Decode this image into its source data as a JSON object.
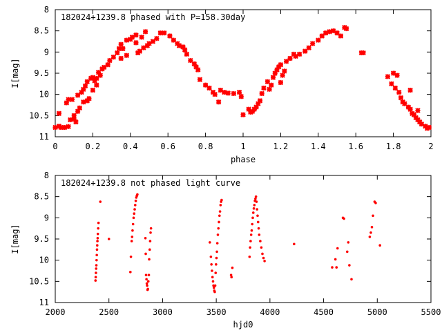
{
  "colors": {
    "marker": "#ff0000",
    "axes": "#000000",
    "background": "#ffffff"
  },
  "chart_data": [
    {
      "type": "scatter",
      "title": "182024+1239.8 phased with P=158.30day",
      "xlabel": "phase",
      "ylabel": "I[mag]",
      "xlim": [
        0,
        2
      ],
      "ylim": [
        8,
        11
      ],
      "y_inverted": true,
      "grid": false,
      "xticks": [
        "0",
        "0.2",
        "0.4",
        "0.6",
        "0.8",
        "1",
        "1.2",
        "1.4",
        "1.6",
        "1.8",
        "2"
      ],
      "yticks": [
        "8",
        "8.5",
        "9",
        "9.5",
        "10",
        "10.5",
        "11"
      ],
      "series": [
        {
          "marker": "star",
          "points": [
            [
              0.0,
              10.78
            ],
            [
              0.02,
              10.75
            ],
            [
              0.03,
              10.78
            ],
            [
              0.05,
              10.78
            ],
            [
              0.07,
              10.76
            ],
            [
              0.02,
              10.45
            ],
            [
              0.06,
              10.2
            ],
            [
              0.07,
              10.12
            ],
            [
              0.09,
              10.12
            ],
            [
              0.08,
              10.6
            ],
            [
              0.1,
              10.58
            ],
            [
              0.11,
              10.65
            ],
            [
              0.1,
              10.5
            ],
            [
              0.12,
              10.4
            ],
            [
              0.13,
              10.32
            ],
            [
              0.12,
              10.02
            ],
            [
              0.14,
              9.95
            ],
            [
              0.15,
              9.88
            ],
            [
              0.16,
              9.8
            ],
            [
              0.15,
              10.18
            ],
            [
              0.17,
              10.15
            ],
            [
              0.18,
              10.1
            ],
            [
              0.17,
              9.7
            ],
            [
              0.19,
              9.62
            ],
            [
              0.2,
              9.6
            ],
            [
              0.21,
              9.68
            ],
            [
              0.2,
              9.9
            ],
            [
              0.22,
              9.78
            ],
            [
              0.22,
              9.62
            ],
            [
              0.23,
              9.48
            ],
            [
              0.25,
              9.4
            ],
            [
              0.24,
              9.55
            ],
            [
              0.26,
              9.36
            ],
            [
              0.28,
              9.3
            ],
            [
              0.29,
              9.2
            ],
            [
              0.31,
              9.12
            ],
            [
              0.33,
              9.02
            ],
            [
              0.34,
              8.92
            ],
            [
              0.35,
              8.82
            ],
            [
              0.36,
              8.92
            ],
            [
              0.35,
              9.15
            ],
            [
              0.38,
              9.08
            ],
            [
              0.38,
              8.72
            ],
            [
              0.4,
              8.7
            ],
            [
              0.41,
              8.65
            ],
            [
              0.43,
              8.6
            ],
            [
              0.43,
              8.78
            ],
            [
              0.44,
              9.02
            ],
            [
              0.45,
              8.98
            ],
            [
              0.46,
              8.65
            ],
            [
              0.47,
              8.9
            ],
            [
              0.48,
              8.52
            ],
            [
              0.49,
              8.85
            ],
            [
              0.5,
              8.8
            ],
            [
              0.52,
              8.75
            ],
            [
              0.54,
              8.68
            ],
            [
              0.56,
              8.55
            ],
            [
              0.58,
              8.55
            ],
            [
              0.61,
              8.62
            ],
            [
              0.63,
              8.72
            ],
            [
              0.65,
              8.8
            ],
            [
              0.66,
              8.85
            ],
            [
              0.68,
              8.88
            ],
            [
              0.69,
              8.95
            ],
            [
              0.7,
              9.05
            ],
            [
              0.72,
              9.2
            ],
            [
              0.74,
              9.28
            ],
            [
              0.75,
              9.35
            ],
            [
              0.76,
              9.42
            ],
            [
              0.77,
              9.65
            ],
            [
              0.8,
              9.78
            ],
            [
              0.82,
              9.85
            ],
            [
              0.84,
              9.95
            ],
            [
              0.85,
              10.0
            ],
            [
              0.87,
              10.18
            ],
            [
              0.88,
              9.9
            ],
            [
              0.9,
              9.95
            ],
            [
              0.92,
              9.97
            ],
            [
              0.95,
              9.98
            ],
            [
              0.98,
              9.95
            ],
            [
              0.99,
              10.05
            ],
            [
              1.0,
              10.48
            ],
            [
              1.03,
              10.35
            ],
            [
              1.04,
              10.42
            ],
            [
              1.05,
              10.4
            ],
            [
              1.06,
              10.35
            ],
            [
              1.07,
              10.3
            ],
            [
              1.08,
              10.22
            ],
            [
              1.09,
              10.15
            ],
            [
              1.1,
              9.98
            ],
            [
              1.11,
              9.85
            ],
            [
              1.13,
              9.7
            ],
            [
              1.14,
              9.88
            ],
            [
              1.15,
              9.78
            ],
            [
              1.16,
              9.6
            ],
            [
              1.17,
              9.5
            ],
            [
              1.18,
              9.42
            ],
            [
              1.19,
              9.35
            ],
            [
              1.2,
              9.3
            ],
            [
              1.21,
              9.55
            ],
            [
              1.2,
              9.72
            ],
            [
              1.22,
              9.45
            ],
            [
              1.23,
              9.22
            ],
            [
              1.25,
              9.15
            ],
            [
              1.27,
              9.05
            ],
            [
              1.28,
              9.1
            ],
            [
              1.3,
              9.05
            ],
            [
              1.33,
              8.98
            ],
            [
              1.35,
              8.9
            ],
            [
              1.37,
              8.8
            ],
            [
              1.4,
              8.72
            ],
            [
              1.42,
              8.62
            ],
            [
              1.44,
              8.55
            ],
            [
              1.46,
              8.52
            ],
            [
              1.48,
              8.5
            ],
            [
              1.5,
              8.55
            ],
            [
              1.52,
              8.62
            ],
            [
              1.54,
              8.42
            ],
            [
              1.55,
              8.45
            ],
            [
              1.63,
              9.02
            ],
            [
              1.64,
              9.02
            ],
            [
              1.77,
              9.58
            ],
            [
              1.79,
              9.75
            ],
            [
              1.8,
              9.5
            ],
            [
              1.81,
              9.85
            ],
            [
              1.82,
              9.55
            ],
            [
              1.83,
              9.95
            ],
            [
              1.84,
              10.08
            ],
            [
              1.85,
              10.18
            ],
            [
              1.86,
              10.22
            ],
            [
              1.88,
              10.3
            ],
            [
              1.89,
              10.35
            ],
            [
              1.89,
              9.9
            ],
            [
              1.9,
              10.45
            ],
            [
              1.91,
              10.48
            ],
            [
              1.92,
              10.55
            ],
            [
              1.93,
              10.38
            ],
            [
              1.93,
              10.6
            ],
            [
              1.94,
              10.65
            ],
            [
              1.95,
              10.7
            ],
            [
              1.97,
              10.75
            ],
            [
              1.98,
              10.8
            ],
            [
              1.99,
              10.78
            ]
          ]
        }
      ]
    },
    {
      "type": "scatter",
      "title": "182024+1239.8 not phased light curve",
      "xlabel": "hjd0",
      "ylabel": "I[mag]",
      "xlim": [
        2000,
        5500
      ],
      "ylim": [
        8,
        11
      ],
      "y_inverted": true,
      "grid": false,
      "xticks": [
        "2000",
        "2500",
        "3000",
        "3500",
        "4000",
        "4500",
        "5000",
        "5500"
      ],
      "yticks": [
        "8",
        "8.5",
        "9",
        "9.5",
        "10",
        "10.5",
        "11"
      ],
      "series": [
        {
          "marker": "dot",
          "points": [
            [
              2375,
              10.48
            ],
            [
              2377,
              10.4
            ],
            [
              2379,
              10.3
            ],
            [
              2381,
              10.2
            ],
            [
              2383,
              10.12
            ],
            [
              2385,
              10.0
            ],
            [
              2387,
              9.88
            ],
            [
              2389,
              9.75
            ],
            [
              2391,
              9.65
            ],
            [
              2393,
              9.55
            ],
            [
              2395,
              9.48
            ],
            [
              2397,
              9.38
            ],
            [
              2400,
              9.25
            ],
            [
              2403,
              9.12
            ],
            [
              2420,
              8.62
            ],
            [
              2500,
              9.5
            ],
            [
              2700,
              10.28
            ],
            [
              2705,
              9.92
            ],
            [
              2712,
              9.55
            ],
            [
              2716,
              9.45
            ],
            [
              2720,
              9.3
            ],
            [
              2725,
              9.15
            ],
            [
              2730,
              9.0
            ],
            [
              2735,
              8.9
            ],
            [
              2740,
              8.8
            ],
            [
              2745,
              8.7
            ],
            [
              2750,
              8.6
            ],
            [
              2755,
              8.52
            ],
            [
              2760,
              8.48
            ],
            [
              2765,
              8.45
            ],
            [
              2840,
              9.48
            ],
            [
              2843,
              9.85
            ],
            [
              2846,
              10.35
            ],
            [
              2850,
              10.45
            ],
            [
              2853,
              10.55
            ],
            [
              2856,
              10.6
            ],
            [
              2860,
              10.7
            ],
            [
              2863,
              10.68
            ],
            [
              2867,
              10.5
            ],
            [
              2872,
              10.35
            ],
            [
              2875,
              9.98
            ],
            [
              2880,
              9.75
            ],
            [
              2884,
              9.55
            ],
            [
              2888,
              9.35
            ],
            [
              2892,
              9.25
            ],
            [
              3440,
              9.58
            ],
            [
              3450,
              9.92
            ],
            [
              3455,
              10.1
            ],
            [
              3460,
              10.25
            ],
            [
              3465,
              10.4
            ],
            [
              3470,
              10.5
            ],
            [
              3474,
              10.6
            ],
            [
              3478,
              10.65
            ],
            [
              3482,
              10.72
            ],
            [
              3486,
              10.75
            ],
            [
              3490,
              10.6
            ],
            [
              3494,
              10.3
            ],
            [
              3498,
              10.1
            ],
            [
              3502,
              9.95
            ],
            [
              3506,
              9.8
            ],
            [
              3510,
              9.6
            ],
            [
              3515,
              9.4
            ],
            [
              3520,
              9.25
            ],
            [
              3525,
              9.1
            ],
            [
              3530,
              8.95
            ],
            [
              3535,
              8.85
            ],
            [
              3540,
              8.7
            ],
            [
              3545,
              8.62
            ],
            [
              3550,
              8.58
            ],
            [
              3638,
              10.35
            ],
            [
              3642,
              10.4
            ],
            [
              3650,
              10.18
            ],
            [
              3810,
              9.92
            ],
            [
              3815,
              9.7
            ],
            [
              3820,
              9.55
            ],
            [
              3825,
              9.4
            ],
            [
              3830,
              9.3
            ],
            [
              3835,
              9.15
            ],
            [
              3840,
              9.0
            ],
            [
              3845,
              8.88
            ],
            [
              3850,
              8.78
            ],
            [
              3855,
              8.7
            ],
            [
              3860,
              8.6
            ],
            [
              3865,
              8.55
            ],
            [
              3870,
              8.5
            ],
            [
              3875,
              8.62
            ],
            [
              3880,
              8.8
            ],
            [
              3885,
              8.95
            ],
            [
              3890,
              9.1
            ],
            [
              3895,
              9.25
            ],
            [
              3900,
              9.4
            ],
            [
              3910,
              9.55
            ],
            [
              3920,
              9.7
            ],
            [
              3930,
              9.85
            ],
            [
              3940,
              9.95
            ],
            [
              3950,
              10.02
            ],
            [
              4225,
              9.62
            ],
            [
              4580,
              10.17
            ],
            [
              4610,
              9.98
            ],
            [
              4620,
              10.17
            ],
            [
              4630,
              9.72
            ],
            [
              4680,
              9.0
            ],
            [
              4690,
              9.02
            ],
            [
              4720,
              9.8
            ],
            [
              4730,
              9.58
            ],
            [
              4740,
              10.12
            ],
            [
              4760,
              10.45
            ],
            [
              4930,
              9.45
            ],
            [
              4940,
              9.35
            ],
            [
              4950,
              9.22
            ],
            [
              4960,
              8.95
            ],
            [
              4975,
              8.62
            ],
            [
              4985,
              8.65
            ],
            [
              5025,
              9.65
            ]
          ]
        }
      ]
    }
  ]
}
